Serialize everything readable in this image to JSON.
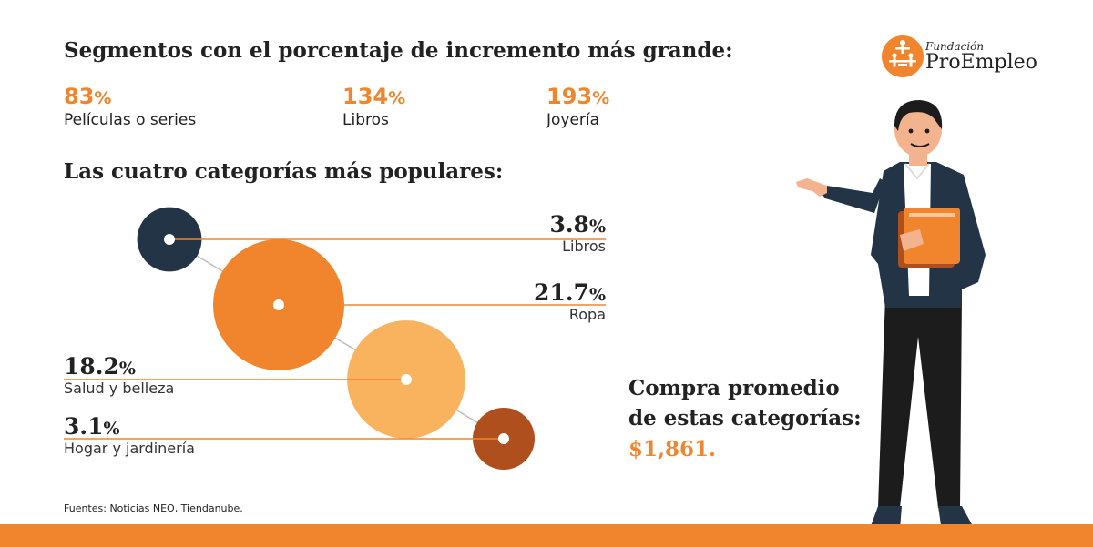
{
  "heading_increase": "Segmentos con el porcentaje de incremento más grande:",
  "increase_stats": [
    {
      "value": "83",
      "unit": "%",
      "label": "Películas o series"
    },
    {
      "value": "134",
      "unit": "%",
      "label": "Libros"
    },
    {
      "value": "193",
      "unit": "%",
      "label": "Joyería"
    }
  ],
  "heading_popular": "Las cuatro categorías más populares:",
  "chart_data": {
    "type": "bubble",
    "title": "Las cuatro categorías más populares:",
    "categories": [
      "Libros",
      "Ropa",
      "Salud y belleza",
      "Hogar y jardinería"
    ],
    "values": [
      3.8,
      21.7,
      18.2,
      3.1
    ],
    "value_labels": [
      "3.8",
      "21.7",
      "18.2",
      "3.1"
    ],
    "unit": "%",
    "colors": [
      "#243447",
      "#f0852d",
      "#f9b25e",
      "#b04f1e"
    ]
  },
  "purchase": {
    "line1": "Compra promedio",
    "line2": "de estas categorías:",
    "amount": "$1,861."
  },
  "sources": "Fuentes: Noticias NEO, Tiendanube.",
  "logo": {
    "small": "Fundación",
    "big": "ProEmpleo"
  },
  "colors": {
    "accent": "#f0852d",
    "dark": "#243447",
    "text": "#222222"
  }
}
